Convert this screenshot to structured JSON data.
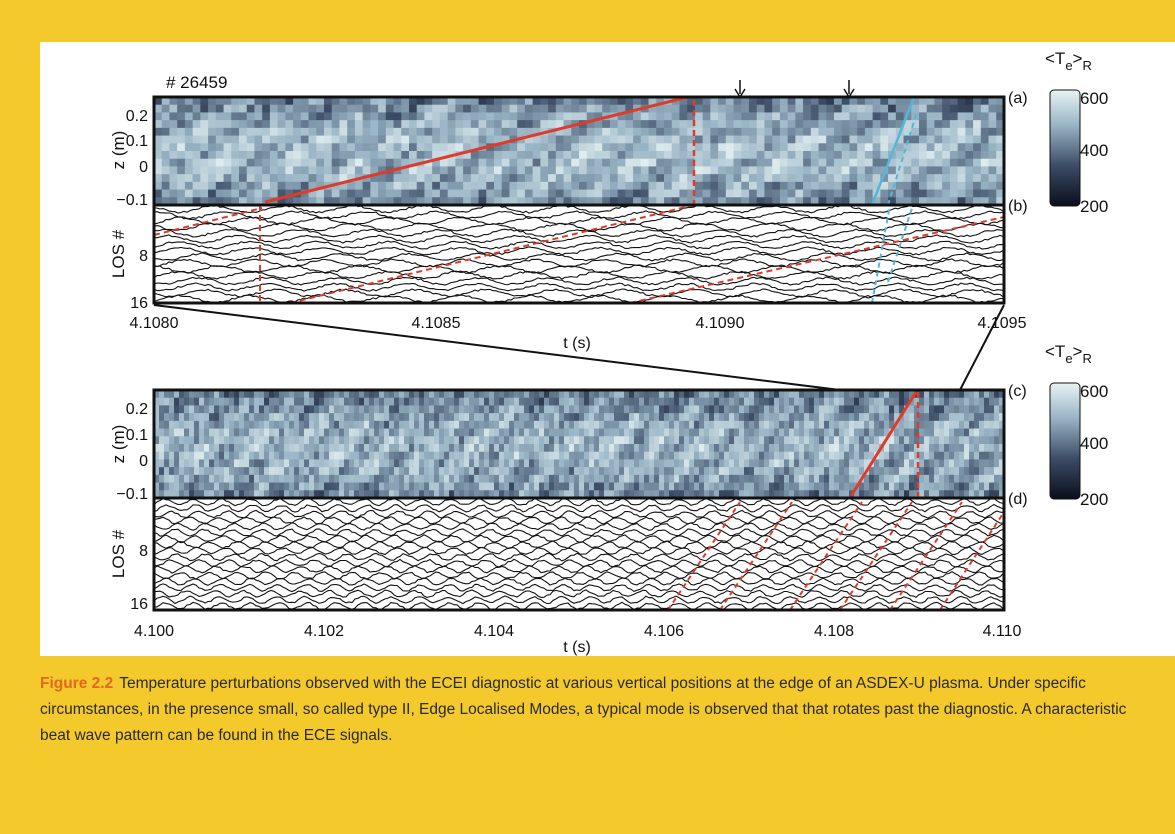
{
  "figure": {
    "shot_label": "# 26459",
    "panels": [
      {
        "label": "(a)",
        "ylabel": "z (m)",
        "yticks": [
          "0.2",
          "0.1",
          "0",
          "−0.1"
        ]
      },
      {
        "label": "(b)",
        "ylabel": "LOS #",
        "yticks": [
          "8",
          "16"
        ]
      },
      {
        "label": "(c)",
        "ylabel": "z (m)",
        "yticks": [
          "0.2",
          "0.1",
          "0",
          "−0.1"
        ]
      },
      {
        "label": "(d)",
        "ylabel": "LOS #",
        "yticks": [
          "8",
          "16"
        ]
      }
    ],
    "top_xticks": [
      "4.1080",
      "4.1085",
      "4.1090",
      "4.1095"
    ],
    "bottom_xticks": [
      "4.100",
      "4.102",
      "4.104",
      "4.106",
      "4.108",
      "4.110"
    ],
    "xlabel": "t (s)",
    "colorbar": {
      "title_main": "<T",
      "title_sub1": "e",
      "title_sup": ">",
      "title_sub2": "R",
      "ticks": [
        "600",
        "400",
        "200"
      ],
      "colors": [
        "#e8f4f4",
        "#9ab5c6",
        "#3c4d66",
        "#0a0e1c"
      ]
    },
    "trace_colors": {
      "red": "#e03a28",
      "cyan": "#52b7d8",
      "background": "#1b2540"
    }
  },
  "caption": {
    "label": "Figure 2.2",
    "text": "Temperature perturbations observed with the ECEI diagnostic at various vertical positions at the edge of an ASDEX-U plasma. Under specific circumstances, in the presence small, so called type II, Edge Localised Modes, a typical mode is observed that that rotates past the diagnostic. A characteristic beat wave pattern can be found in the ECE signals."
  }
}
